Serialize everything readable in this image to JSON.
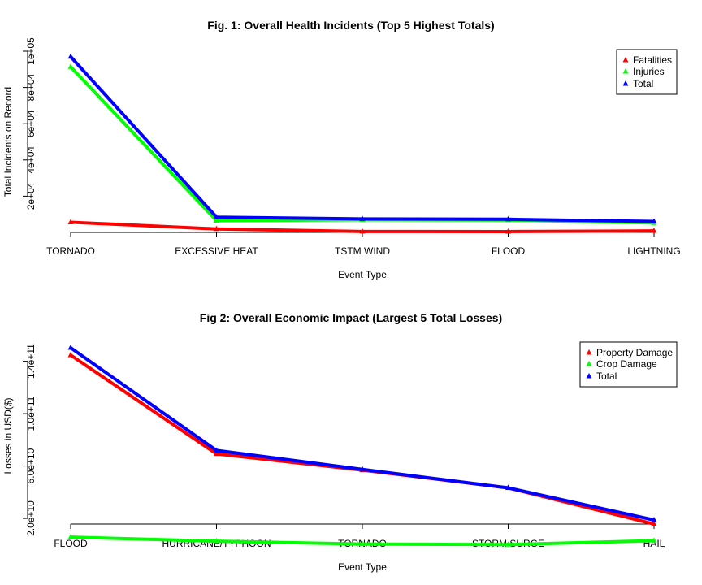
{
  "chart_data": [
    {
      "type": "line",
      "title": "Fig. 1: Overall Health Incidents (Top 5 Highest Totals)",
      "xlabel": "Event Type",
      "ylabel": "Total Incidents on Record",
      "categories": [
        "TORNADO",
        "EXCESSIVE HEAT",
        "TSTM WIND",
        "FLOOD",
        "LIGHTNING"
      ],
      "ylim": [
        0,
        100000
      ],
      "yticks": [
        20000,
        40000,
        60000,
        80000,
        100000
      ],
      "ytick_labels": [
        "2e+04",
        "4e+04",
        "6e+04",
        "8e+04",
        "1e+05"
      ],
      "legend_position": "top-right",
      "series": [
        {
          "name": "Fatalities",
          "color": "#ff0000",
          "values": [
            5633,
            1903,
            504,
            470,
            816
          ]
        },
        {
          "name": "Injuries",
          "color": "#00ff00",
          "values": [
            91346,
            6525,
            6957,
            6789,
            5230
          ]
        },
        {
          "name": "Total",
          "color": "#0000ff",
          "values": [
            96979,
            8428,
            7461,
            7259,
            6046
          ]
        }
      ]
    },
    {
      "type": "line",
      "title": "Fig 2: Overall Economic Impact (Largest 5 Total Losses)",
      "xlabel": "Event Type",
      "ylabel": "Losses in USD($)",
      "categories": [
        "FLOOD",
        "HURRICANE/TYPHOON",
        "TORNADO",
        "STORM SURGE",
        "HAIL"
      ],
      "ylim": [
        20000000000,
        150000000000
      ],
      "yticks": [
        20000000000,
        60000000000,
        100000000000,
        140000000000
      ],
      "ytick_labels": [
        "2.0e+10",
        "6.0e+10",
        "1.0e+11",
        "1.4e+11"
      ],
      "legend_position": "top-right",
      "series": [
        {
          "name": "Property Damage",
          "color": "#ff0000",
          "values": [
            144700000000,
            69300000000,
            56900000000,
            43300000000,
            15700000000
          ]
        },
        {
          "name": "Crop Damage",
          "color": "#00ff00",
          "values": [
            5700000000,
            2600000000,
            400000000,
            5000,
            3000000000
          ]
        },
        {
          "name": "Total",
          "color": "#0000ff",
          "values": [
            150300000000,
            71900000000,
            57400000000,
            43300000000,
            18800000000
          ]
        }
      ]
    }
  ]
}
